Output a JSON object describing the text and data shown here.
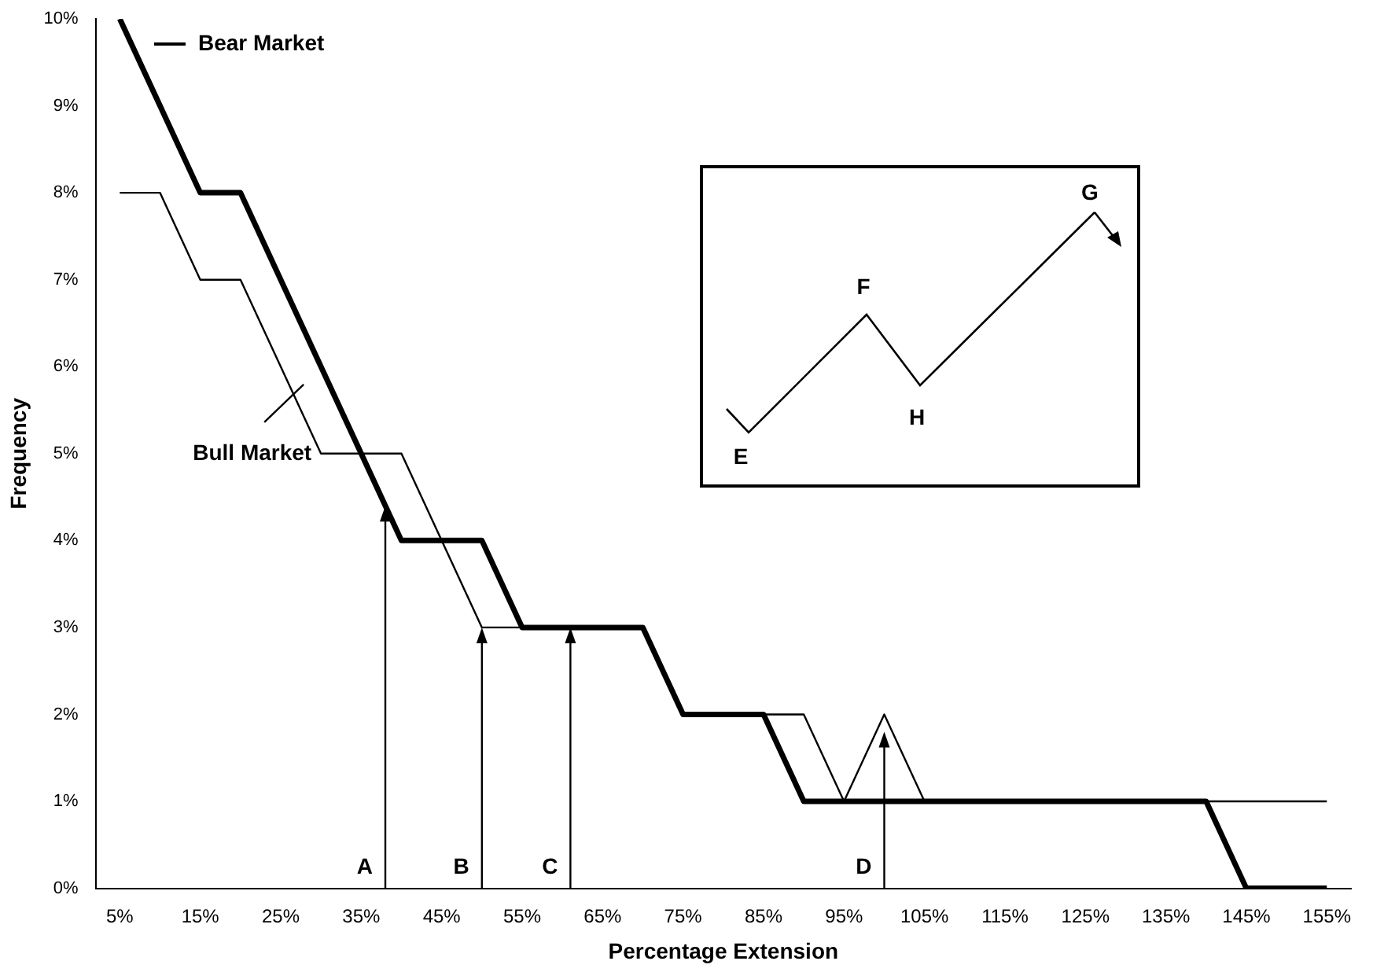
{
  "chart_data": {
    "type": "line",
    "xlabel": "Percentage Extension",
    "ylabel": "Frequency",
    "x": [
      5,
      10,
      15,
      20,
      25,
      30,
      35,
      40,
      45,
      50,
      55,
      60,
      65,
      70,
      75,
      80,
      85,
      90,
      95,
      100,
      105,
      110,
      115,
      120,
      125,
      130,
      135,
      140,
      145,
      150,
      155
    ],
    "series": [
      {
        "name": "Bear Market",
        "color": "#000000",
        "values": [
          10,
          9,
          8,
          8,
          7,
          6,
          5,
          4,
          4,
          4,
          3,
          3,
          3,
          3,
          2,
          2,
          2,
          1,
          1,
          1,
          1,
          1,
          1,
          1,
          1,
          1,
          1,
          1,
          0,
          0,
          0
        ]
      },
      {
        "name": "Bull Market",
        "color": "#000000",
        "values": [
          8,
          8,
          7,
          7,
          6,
          5,
          5,
          5,
          4,
          3,
          3,
          3,
          3,
          3,
          2,
          2,
          2,
          2,
          1,
          2,
          1,
          1,
          1,
          1,
          1,
          1,
          1,
          1,
          1,
          1,
          1
        ]
      }
    ],
    "xlim": [
      2,
      158
    ],
    "ylim": [
      0,
      10
    ],
    "xticks": [
      {
        "value": 5,
        "label": "5%"
      },
      {
        "value": 15,
        "label": "15%"
      },
      {
        "value": 25,
        "label": "25%"
      },
      {
        "value": 35,
        "label": "35%"
      },
      {
        "value": 45,
        "label": "45%"
      },
      {
        "value": 55,
        "label": "55%"
      },
      {
        "value": 65,
        "label": "65%"
      },
      {
        "value": 75,
        "label": "75%"
      },
      {
        "value": 85,
        "label": "85%"
      },
      {
        "value": 95,
        "label": "95%"
      },
      {
        "value": 105,
        "label": "105%"
      },
      {
        "value": 115,
        "label": "115%"
      },
      {
        "value": 125,
        "label": "125%"
      },
      {
        "value": 135,
        "label": "135%"
      },
      {
        "value": 145,
        "label": "145%"
      },
      {
        "value": 155,
        "label": "155%"
      }
    ],
    "yticks": [
      {
        "value": 0,
        "label": "0%"
      },
      {
        "value": 1,
        "label": "1%"
      },
      {
        "value": 2,
        "label": "2%"
      },
      {
        "value": 3,
        "label": "3%"
      },
      {
        "value": 4,
        "label": "4%"
      },
      {
        "value": 5,
        "label": "5%"
      },
      {
        "value": 6,
        "label": "6%"
      },
      {
        "value": 7,
        "label": "7%"
      },
      {
        "value": 8,
        "label": "8%"
      },
      {
        "value": 9,
        "label": "9%"
      },
      {
        "value": 10,
        "label": "10%"
      }
    ],
    "grid": false,
    "marker": "none",
    "annotations": [
      {
        "text": "A",
        "x": 38,
        "y": 4.4
      },
      {
        "text": "B",
        "x": 50,
        "y": 3
      },
      {
        "text": "C",
        "x": 61,
        "y": 3
      },
      {
        "text": "D",
        "x": 100,
        "y": 1.8
      },
      "E",
      "F",
      "H",
      "G"
    ]
  }
}
